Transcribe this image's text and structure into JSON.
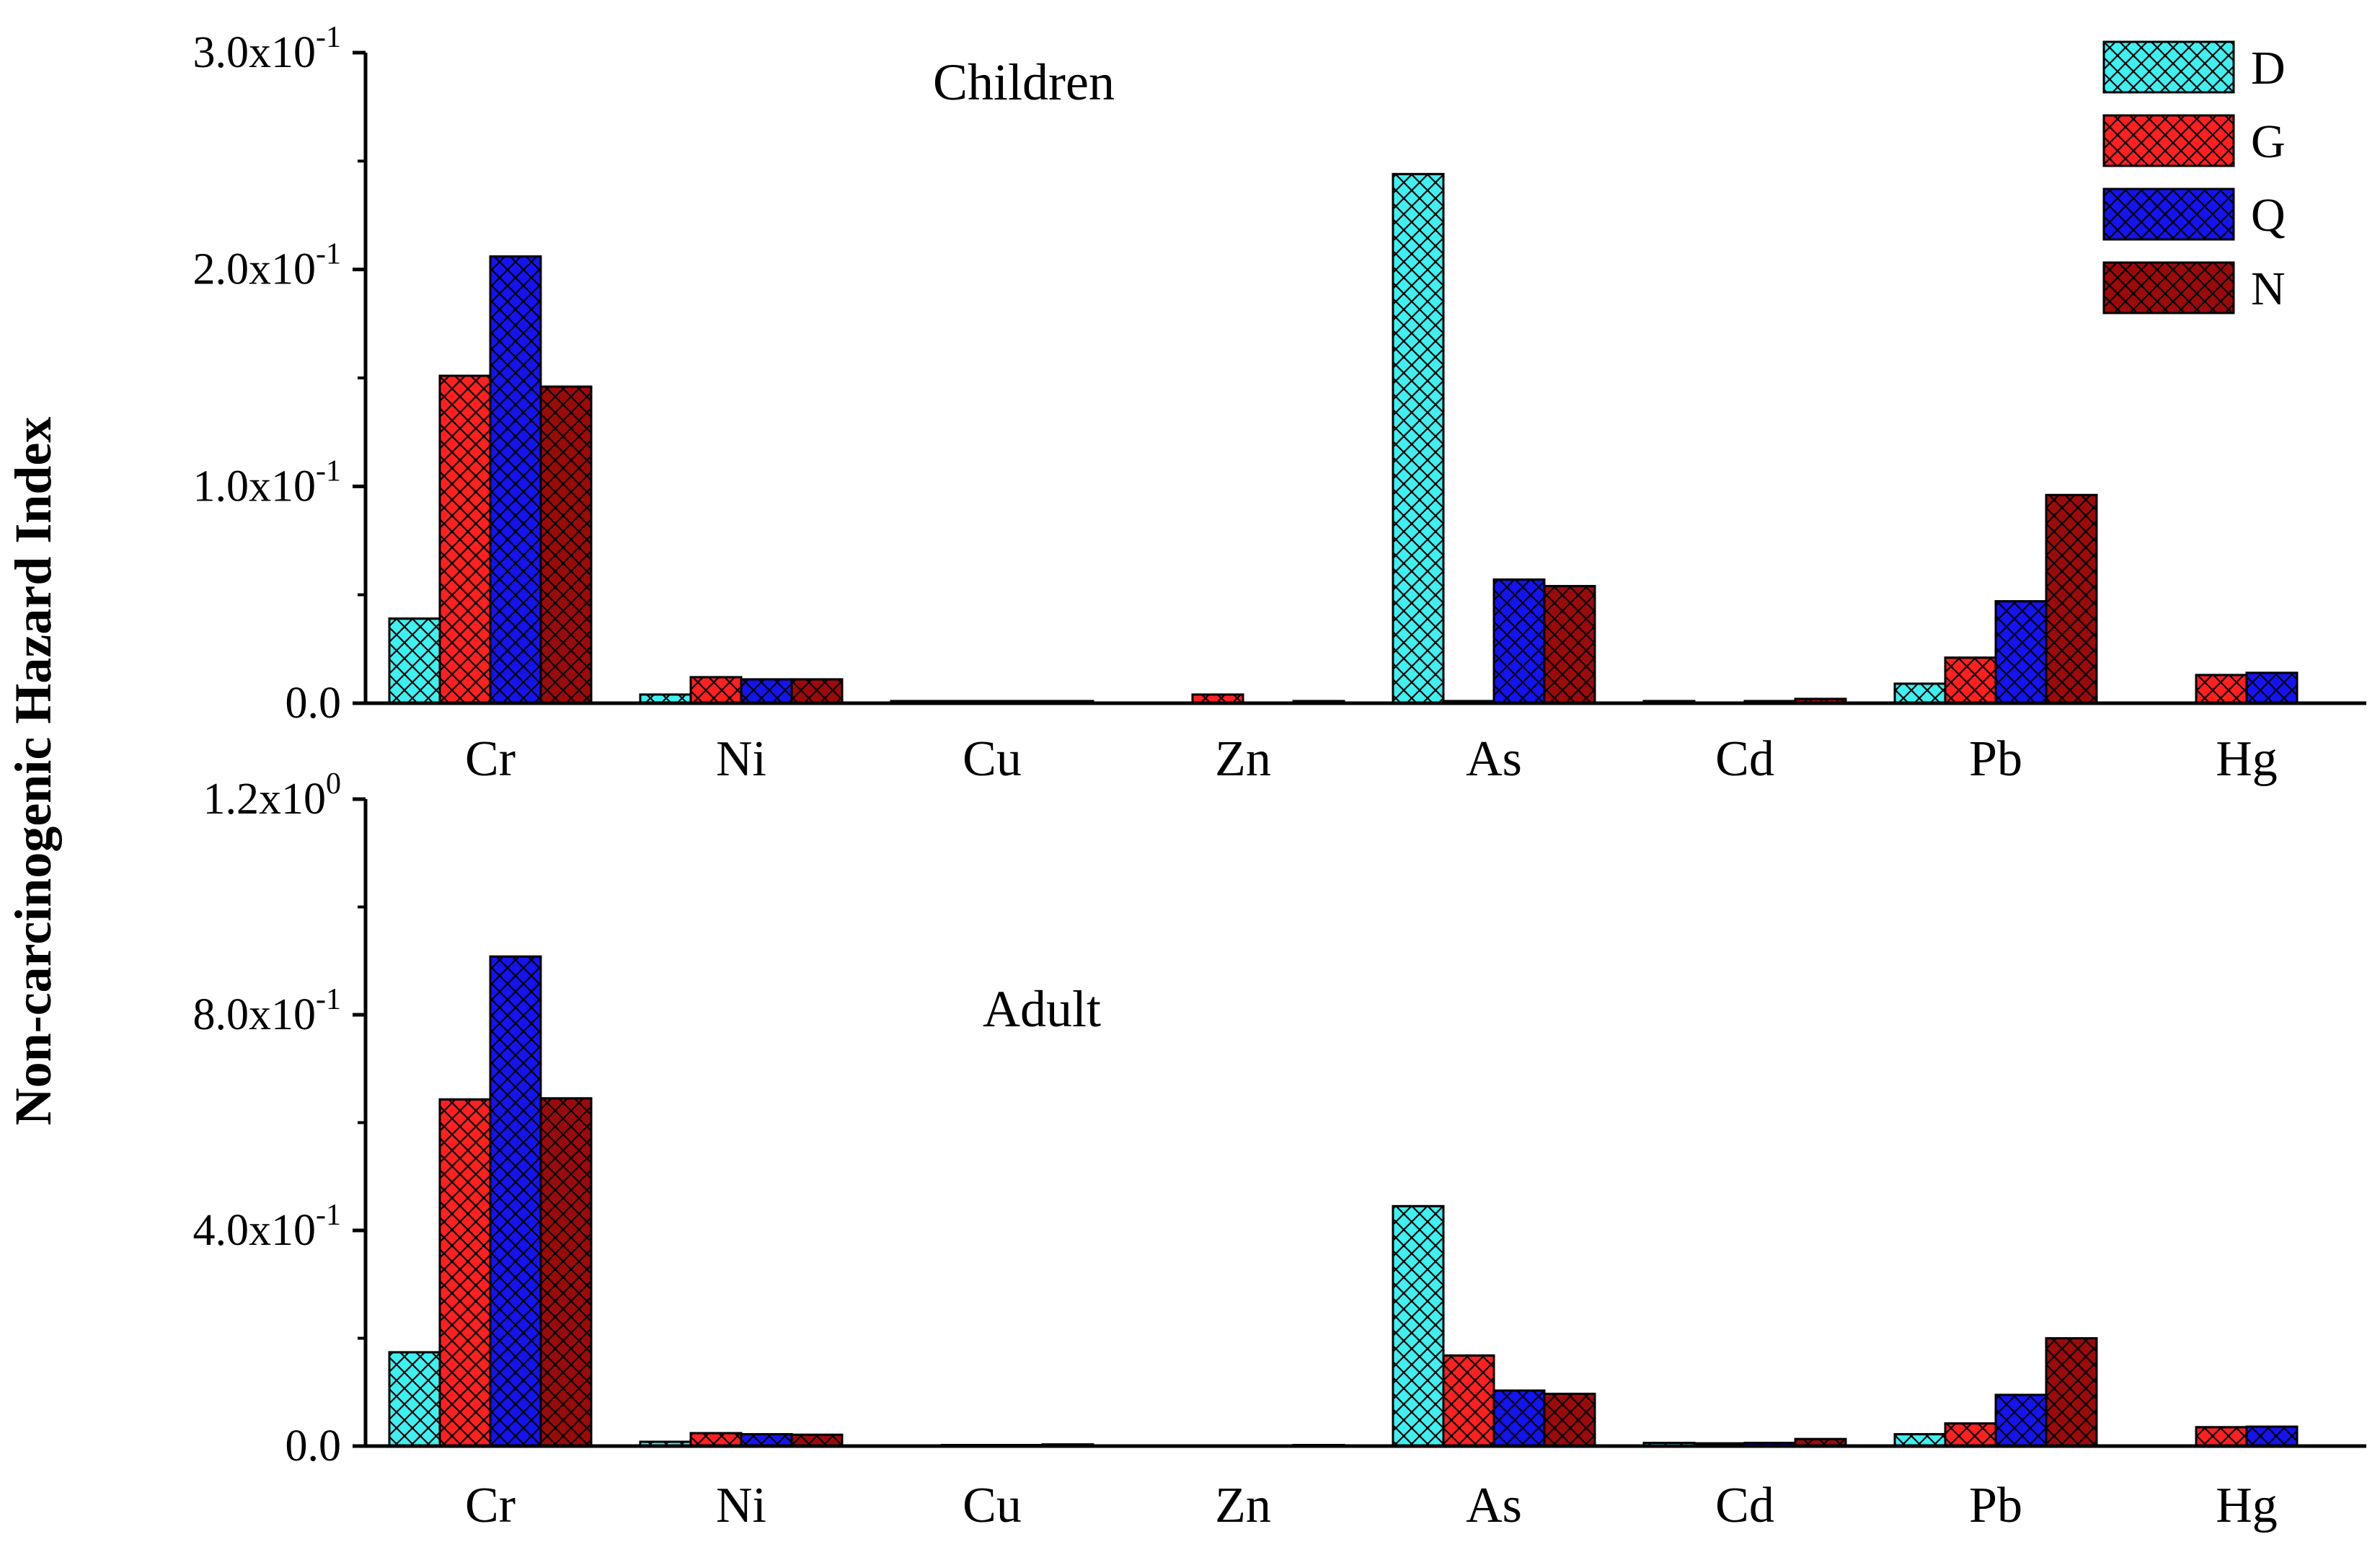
{
  "chart_data": {
    "type": "bar",
    "ylabel": "Non-carcinogenic Hazard Index",
    "categories": [
      "Cr",
      "Ni",
      "Cu",
      "Zn",
      "As",
      "Cd",
      "Pb",
      "Hg"
    ],
    "legend": {
      "position": "top-right",
      "entries": [
        "D",
        "G",
        "Q",
        "N"
      ]
    },
    "series_colors": {
      "D": "#3ff0f0",
      "G": "#ff2020",
      "Q": "#1414ee",
      "N": "#9c0a0a"
    },
    "panels": [
      {
        "title": "Children",
        "ylim": [
          0,
          0.3
        ],
        "yticks": [
          0,
          0.1,
          0.2,
          0.3
        ],
        "ytick_labels": [
          {
            "mantissa": "0.0",
            "exp": ""
          },
          {
            "mantissa": "1.0x10",
            "exp": "-1"
          },
          {
            "mantissa": "2.0x10",
            "exp": "-1"
          },
          {
            "mantissa": "3.0x10",
            "exp": "-1"
          }
        ],
        "series": [
          {
            "name": "D",
            "values": [
              0.039,
              0.004,
              0.001,
              0.0,
              0.244,
              0.001,
              0.009,
              0.0
            ]
          },
          {
            "name": "G",
            "values": [
              0.151,
              0.012,
              0.001,
              0.004,
              0.001,
              0.0,
              0.021,
              0.013
            ]
          },
          {
            "name": "Q",
            "values": [
              0.206,
              0.011,
              0.001,
              0.0,
              0.057,
              0.001,
              0.047,
              0.014
            ]
          },
          {
            "name": "N",
            "values": [
              0.146,
              0.011,
              0.001,
              0.001,
              0.054,
              0.002,
              0.096,
              0.0
            ]
          }
        ]
      },
      {
        "title": "Adult",
        "ylim": [
          0,
          1.2
        ],
        "yticks": [
          0,
          0.4,
          0.8,
          1.2
        ],
        "ytick_labels": [
          {
            "mantissa": "0.0",
            "exp": ""
          },
          {
            "mantissa": "4.0x10",
            "exp": "-1"
          },
          {
            "mantissa": "8.0x10",
            "exp": "-1"
          },
          {
            "mantissa": "1.2x10",
            "exp": "0"
          }
        ],
        "series": [
          {
            "name": "D",
            "values": [
              0.174,
              0.008,
              0.001,
              0.0,
              0.445,
              0.006,
              0.022,
              0.0
            ]
          },
          {
            "name": "G",
            "values": [
              0.643,
              0.024,
              0.002,
              0.001,
              0.168,
              0.005,
              0.042,
              0.035
            ]
          },
          {
            "name": "Q",
            "values": [
              0.908,
              0.022,
              0.002,
              0.0,
              0.103,
              0.006,
              0.095,
              0.036
            ]
          },
          {
            "name": "N",
            "values": [
              0.645,
              0.021,
              0.003,
              0.002,
              0.097,
              0.013,
              0.2,
              0.0
            ]
          }
        ]
      }
    ]
  }
}
